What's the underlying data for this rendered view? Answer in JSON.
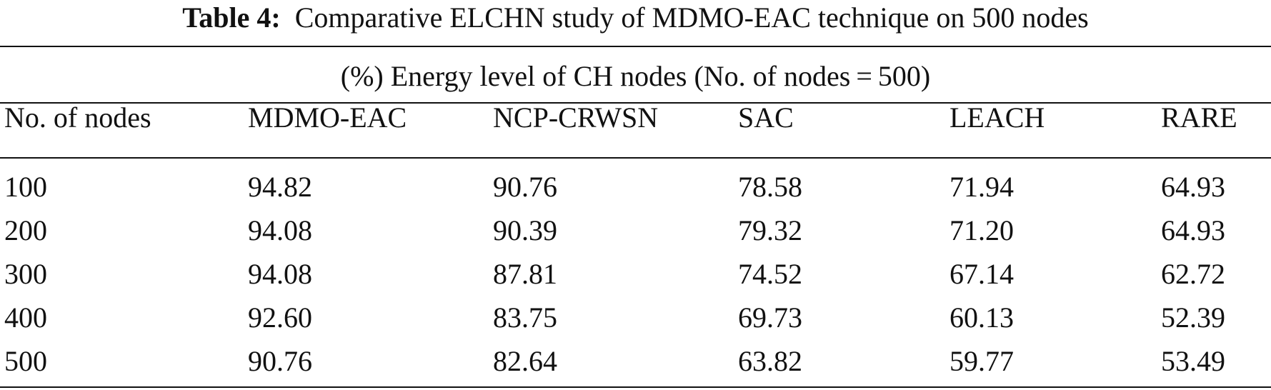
{
  "caption": {
    "label": "Table 4:",
    "text": "Comparative ELCHN study of MDMO-EAC technique on 500 nodes"
  },
  "table": {
    "span_header": "(%) Energy level of CH nodes (No. of nodes = 500)",
    "columns": [
      "No. of nodes",
      "MDMO-EAC",
      "NCP-CRWSN",
      "SAC",
      "LEACH",
      "RARE"
    ],
    "rows": [
      [
        "100",
        "94.82",
        "90.76",
        "78.58",
        "71.94",
        "64.93"
      ],
      [
        "200",
        "94.08",
        "90.39",
        "79.32",
        "71.20",
        "64.93"
      ],
      [
        "300",
        "94.08",
        "87.81",
        "74.52",
        "67.14",
        "62.72"
      ],
      [
        "400",
        "92.60",
        "83.75",
        "69.73",
        "60.13",
        "52.39"
      ],
      [
        "500",
        "90.76",
        "82.64",
        "63.82",
        "59.77",
        "53.49"
      ]
    ]
  }
}
